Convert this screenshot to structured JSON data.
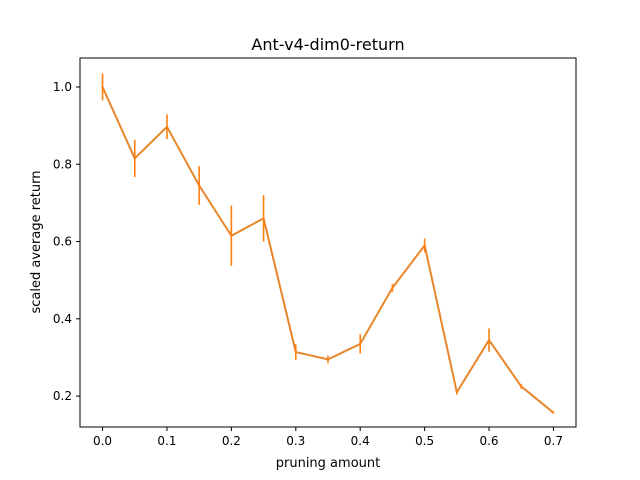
{
  "chart_data": {
    "type": "line",
    "title": "Ant-v4-dim0-return",
    "xlabel": "pruning amount",
    "ylabel": "scaled average return",
    "xlim": [
      -0.035,
      0.735
    ],
    "ylim": [
      0.12,
      1.075
    ],
    "xticks": [
      0.0,
      0.1,
      0.2,
      0.3,
      0.4,
      0.5,
      0.6,
      0.7
    ],
    "xtick_labels": [
      "0.0",
      "0.1",
      "0.2",
      "0.3",
      "0.4",
      "0.5",
      "0.6",
      "0.7"
    ],
    "yticks": [
      0.2,
      0.4,
      0.6,
      0.8,
      1.0
    ],
    "ytick_labels": [
      "0.2",
      "0.4",
      "0.6",
      "0.8",
      "1.0"
    ],
    "grid": false,
    "series": [
      {
        "color": "#ff7f0e",
        "line_color": "#e8862b",
        "x": [
          0.0,
          0.05,
          0.1,
          0.15,
          0.2,
          0.25,
          0.3,
          0.35,
          0.4,
          0.45,
          0.5,
          0.55,
          0.6,
          0.65,
          0.7
        ],
        "y": [
          1.0,
          0.815,
          0.897,
          0.745,
          0.615,
          0.66,
          0.314,
          0.295,
          0.335,
          0.48,
          0.59,
          0.21,
          0.345,
          0.225,
          0.157
        ],
        "err": [
          0.035,
          0.048,
          0.032,
          0.05,
          0.078,
          0.06,
          0.02,
          0.01,
          0.025,
          0.01,
          0.018,
          0.006,
          0.03,
          0.006,
          0.003
        ]
      }
    ]
  }
}
